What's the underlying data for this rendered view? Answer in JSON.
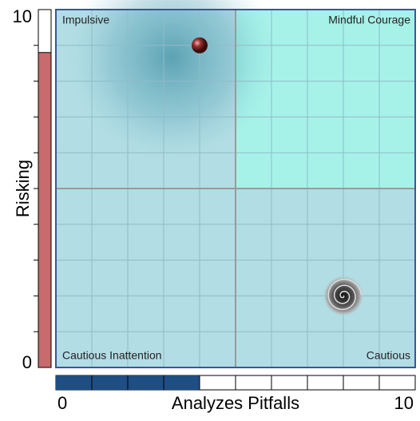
{
  "chart_data": {
    "type": "quadrant",
    "xlabel": "Analyzes Pitfalls",
    "ylabel": "Risking",
    "xlim": [
      0,
      10
    ],
    "ylim": [
      0,
      10
    ],
    "xticks": [
      0,
      10
    ],
    "yticks": [
      0,
      10
    ],
    "quadrants": {
      "top_left": "Impulsive",
      "top_right": "Mindful Courage",
      "bottom_left": "Cautious Inattention",
      "bottom_right": "Cautious"
    },
    "x_gauge": {
      "value": 4,
      "color": "#1f4e85"
    },
    "y_gauge": {
      "value": 8.8,
      "color": "#c96a6e"
    },
    "marker": {
      "x": 4,
      "y": 9
    },
    "target": {
      "x": 8,
      "y": 2
    }
  }
}
